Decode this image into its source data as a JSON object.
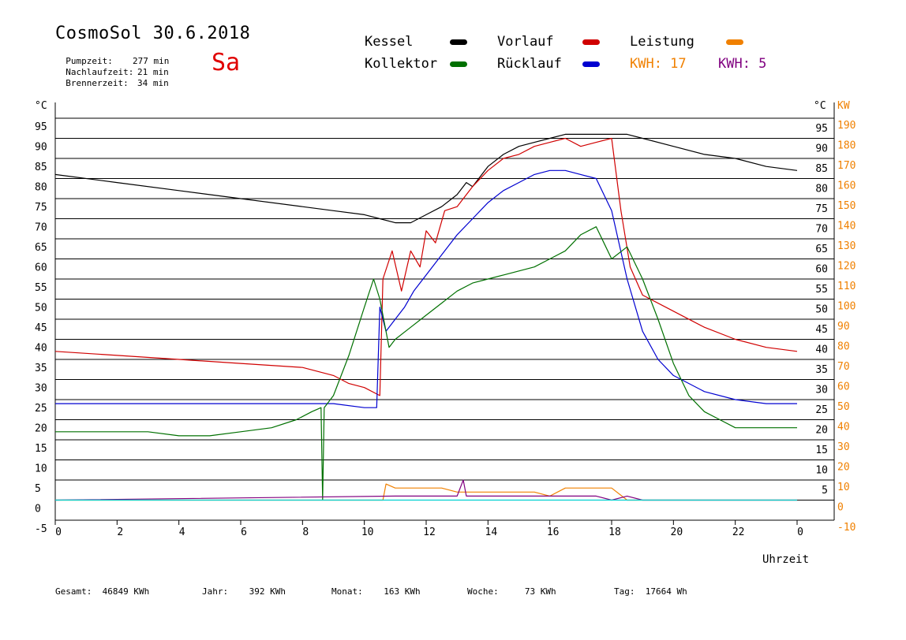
{
  "header": {
    "title": "CosmoSol 30.6.2018",
    "weekday": "Sa",
    "stats": [
      {
        "label": "Pumpzeit:",
        "value": "277 min"
      },
      {
        "label": "Nachlaufzeit:",
        "value": "21 min"
      },
      {
        "label": "Brennerzeit:",
        "value": "34 min"
      }
    ]
  },
  "legend": {
    "kessel": "Kessel",
    "kollektor": "Kollektor",
    "vorlauf": "Vorlauf",
    "ruecklauf": "Rücklauf",
    "leistung": "Leistung",
    "kwh1": "KWH: 17",
    "kwh2": "KWH: 5"
  },
  "footer": [
    {
      "label": "Gesamt:",
      "value": "46849 KWh"
    },
    {
      "label": "Jahr:",
      "value": "392 KWh"
    },
    {
      "label": "Monat:",
      "value": "163 KWh"
    },
    {
      "label": "Woche:",
      "value": "73 KWh"
    },
    {
      "label": "Tag:",
      "value": "17664 Wh"
    }
  ],
  "chart_data": {
    "type": "line",
    "xlabel": "Uhrzeit",
    "ylabel_left": "°C",
    "ylabel_right_temp": "°C",
    "ylabel_right_power": "KW",
    "xlim": [
      0,
      24
    ],
    "ylim": [
      -5,
      95
    ],
    "x_ticks": [
      "0",
      "2",
      "4",
      "6",
      "8",
      "10",
      "12",
      "14",
      "16",
      "18",
      "20",
      "22",
      "0"
    ],
    "y_ticks_left": [
      "95",
      "90",
      "85",
      "80",
      "75",
      "70",
      "65",
      "60",
      "55",
      "50",
      "45",
      "40",
      "35",
      "30",
      "25",
      "20",
      "15",
      "10",
      "5",
      "0",
      "-5"
    ],
    "y_ticks_right_temp": [
      "95",
      "90",
      "85",
      "80",
      "75",
      "70",
      "65",
      "60",
      "55",
      "50",
      "45",
      "40",
      "35",
      "30",
      "25",
      "20",
      "15",
      "10",
      "5"
    ],
    "y_ticks_right_power": [
      "190",
      "180",
      "170",
      "160",
      "150",
      "140",
      "130",
      "120",
      "110",
      "100",
      "90",
      "80",
      "70",
      "60",
      "50",
      "40",
      "30",
      "20",
      "10",
      "0",
      "-10"
    ],
    "grid": true,
    "colors": {
      "kessel": "#000000",
      "kollektor": "#007000",
      "vorlauf": "#d00000",
      "ruecklauf": "#0000d0",
      "leistung": "#f08000",
      "kwh2": "#800080",
      "pump": "#00d0d0"
    },
    "series": [
      {
        "name": "Kessel",
        "color": "#000000",
        "x": [
          0,
          2,
          4,
          6,
          8,
          9,
          10,
          10.5,
          11,
          11.5,
          12,
          12.5,
          13,
          13.3,
          13.5,
          14,
          14.5,
          15,
          15.5,
          16,
          16.5,
          17,
          17.5,
          18,
          18.5,
          19,
          20,
          21,
          22,
          23,
          24
        ],
        "y": [
          81,
          79,
          77,
          75,
          73,
          72,
          71,
          70,
          69,
          69,
          71,
          73,
          76,
          79,
          78,
          83,
          86,
          88,
          89,
          90,
          91,
          91,
          91,
          91,
          91,
          90,
          88,
          86,
          85,
          83,
          82
        ]
      },
      {
        "name": "Vorlauf",
        "color": "#d00000",
        "x": [
          0,
          2,
          4,
          6,
          8,
          8.5,
          9,
          9.5,
          10,
          10.5,
          10.6,
          10.9,
          11.2,
          11.5,
          11.8,
          12,
          12.3,
          12.6,
          13,
          13.5,
          14,
          14.5,
          15,
          15.5,
          16,
          16.5,
          17,
          17.5,
          18,
          18.3,
          18.6,
          19,
          20,
          21,
          22,
          23,
          24
        ],
        "y": [
          37,
          36,
          35,
          34,
          33,
          32,
          31,
          29,
          28,
          26,
          55,
          62,
          52,
          62,
          58,
          67,
          64,
          72,
          73,
          78,
          82,
          85,
          86,
          88,
          89,
          90,
          88,
          89,
          90,
          72,
          58,
          51,
          47,
          43,
          40,
          38,
          37
        ]
      },
      {
        "name": "Rücklauf",
        "color": "#0000d0",
        "x": [
          0,
          2,
          4,
          6,
          8,
          9,
          10,
          10.4,
          10.5,
          10.7,
          11,
          11.3,
          11.6,
          12,
          12.5,
          13,
          13.5,
          14,
          14.5,
          15,
          15.5,
          16,
          16.5,
          17,
          17.5,
          18,
          18.5,
          19,
          19.5,
          20,
          21,
          22,
          23,
          24
        ],
        "y": [
          24,
          24,
          24,
          24,
          24,
          24,
          23,
          23,
          48,
          42,
          45,
          48,
          52,
          56,
          61,
          66,
          70,
          74,
          77,
          79,
          81,
          82,
          82,
          81,
          80,
          72,
          55,
          42,
          35,
          31,
          27,
          25,
          24,
          24
        ]
      },
      {
        "name": "Kollektor",
        "color": "#007000",
        "x": [
          0,
          1,
          2,
          3,
          4,
          5,
          6,
          7,
          7.8,
          8.3,
          8.6,
          8.65,
          8.7,
          9,
          9.5,
          10,
          10.3,
          10.5,
          10.8,
          11,
          11.5,
          12,
          12.5,
          13,
          13.5,
          14,
          14.5,
          15,
          15.5,
          16,
          16.5,
          17,
          17.5,
          18,
          18.5,
          19,
          19.5,
          20,
          20.5,
          21,
          21.5,
          22,
          23,
          24
        ],
        "y": [
          17,
          17,
          17,
          17,
          16,
          16,
          17,
          18,
          20,
          22,
          23,
          0,
          23,
          26,
          36,
          48,
          55,
          50,
          38,
          40,
          43,
          46,
          49,
          52,
          54,
          55,
          56,
          57,
          58,
          60,
          62,
          66,
          68,
          60,
          63,
          55,
          45,
          34,
          26,
          22,
          20,
          18,
          18,
          18
        ]
      },
      {
        "name": "Leistung",
        "color": "#f08000",
        "x": [
          0,
          10.6,
          10.7,
          11,
          11.5,
          12,
          12.5,
          13,
          13.5,
          14,
          14.5,
          15,
          15.5,
          16,
          16.5,
          17,
          17.5,
          18,
          18.5,
          24
        ],
        "y": [
          0,
          0,
          4,
          3,
          3,
          3,
          3,
          2,
          2,
          2,
          2,
          2,
          2,
          1,
          3,
          3,
          3,
          3,
          0,
          0
        ]
      },
      {
        "name": "KWH 5",
        "color": "#800080",
        "x": [
          0,
          11,
          11.5,
          12,
          12.5,
          13,
          13.2,
          13.3,
          13.5,
          14,
          14.5,
          15,
          15.5,
          16,
          16.5,
          17,
          17.5,
          18,
          18.5,
          19,
          24
        ],
        "y": [
          0,
          1,
          1,
          1,
          1,
          1,
          5,
          1,
          1,
          1,
          1,
          1,
          1,
          1,
          1,
          1,
          1,
          0,
          1,
          0,
          0
        ]
      },
      {
        "name": "Pumpe",
        "color": "#00d0d0",
        "x": [
          0,
          24
        ],
        "y": [
          0,
          0
        ]
      }
    ]
  }
}
